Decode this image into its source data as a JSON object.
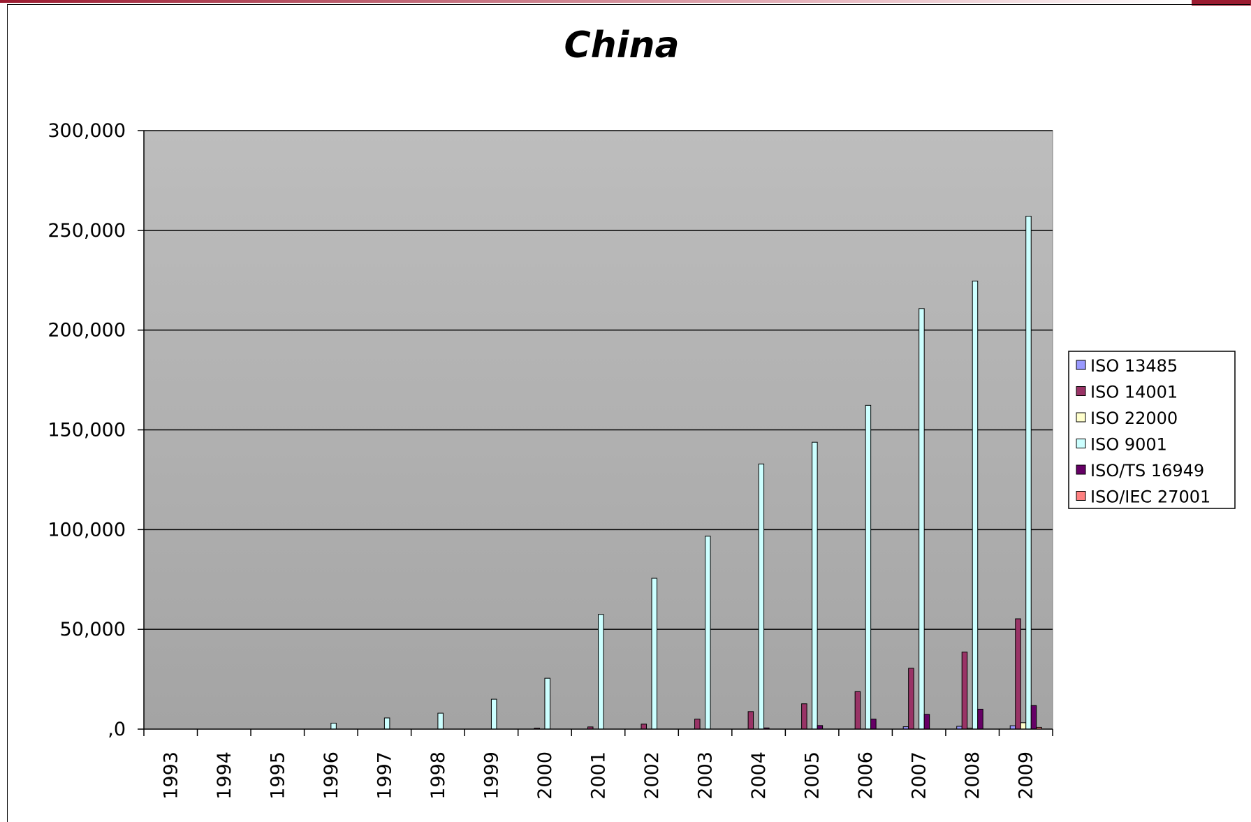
{
  "chart_data": {
    "type": "bar",
    "title": "China",
    "xlabel": "",
    "ylabel": "",
    "ylim": [
      0,
      300000
    ],
    "yticks": [
      0,
      50000,
      100000,
      150000,
      200000,
      250000,
      300000
    ],
    "ytick_labels": [
      ",0",
      "50,000",
      "100,000",
      "150,000",
      "200,000",
      "250,000",
      "300,000"
    ],
    "grid": true,
    "legend_position": "right",
    "categories": [
      "1993",
      "1994",
      "1995",
      "1996",
      "1997",
      "1998",
      "1999",
      "2000",
      "2001",
      "2002",
      "2003",
      "2004",
      "2005",
      "2006",
      "2007",
      "2008",
      "2009"
    ],
    "series": [
      {
        "name": "ISO 13485",
        "color": "#9999ff",
        "values": [
          0,
          0,
          0,
          0,
          0,
          0,
          0,
          0,
          0,
          0,
          0,
          0,
          0,
          0,
          1200,
          1400,
          1700
        ]
      },
      {
        "name": "ISO 14001",
        "color": "#993366",
        "values": [
          0,
          0,
          0,
          0,
          0,
          0,
          0,
          500,
          1100,
          2500,
          5000,
          8800,
          12700,
          18800,
          30500,
          38600,
          55300
        ]
      },
      {
        "name": "ISO 22000",
        "color": "#ffffcc",
        "values": [
          0,
          0,
          0,
          0,
          0,
          0,
          0,
          0,
          0,
          0,
          0,
          0,
          0,
          0,
          0,
          500,
          3200
        ]
      },
      {
        "name": "ISO 9001",
        "color": "#ccffff",
        "values": [
          0,
          0,
          0,
          3000,
          5600,
          8000,
          15000,
          25500,
          57500,
          75600,
          96700,
          132900,
          143800,
          162300,
          210800,
          224600,
          257100
        ]
      },
      {
        "name": "ISO/TS 16949",
        "color": "#660066",
        "values": [
          0,
          0,
          0,
          0,
          0,
          0,
          0,
          0,
          0,
          0,
          0,
          600,
          1800,
          5000,
          7400,
          10000,
          11800
        ]
      },
      {
        "name": "ISO/IEC 27001",
        "color": "#ff8080",
        "values": [
          0,
          0,
          0,
          0,
          0,
          0,
          0,
          0,
          0,
          0,
          0,
          0,
          0,
          0,
          0,
          0,
          900
        ]
      }
    ]
  }
}
